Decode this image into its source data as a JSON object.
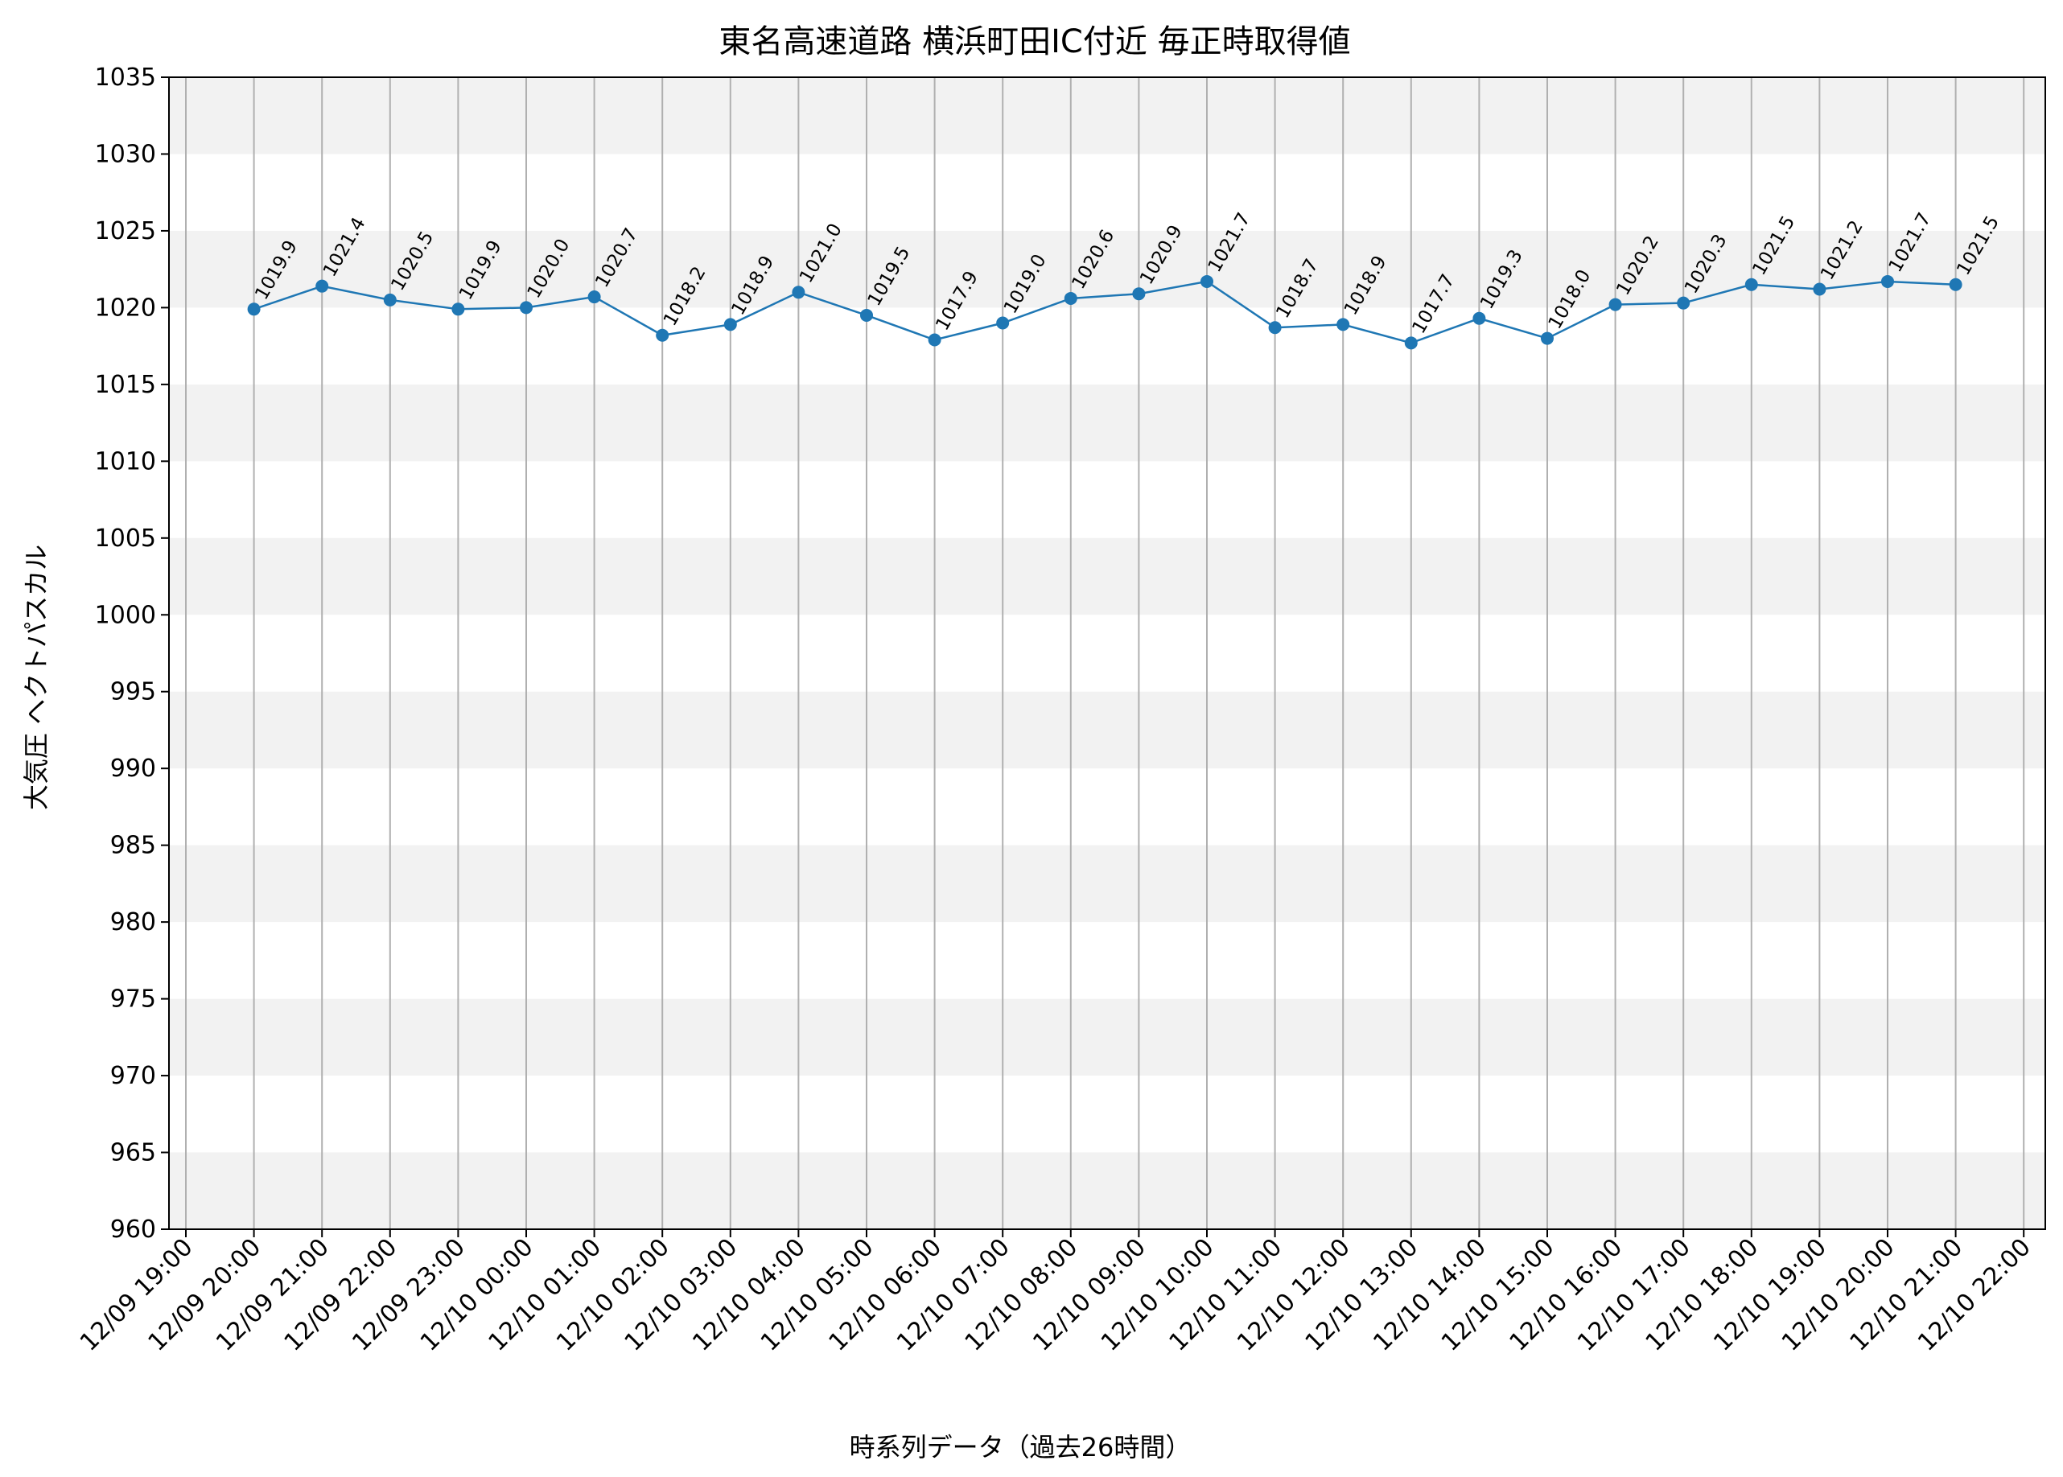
{
  "chart_data": {
    "type": "line",
    "title": "東名高速道路 横浜町田IC付近 毎正時取得値",
    "xlabel": "時系列データ（過去26時間）",
    "ylabel": "大気圧 ヘクトパスカル",
    "ylim": [
      960,
      1035
    ],
    "y_ticks": [
      "960",
      "965",
      "970",
      "975",
      "980",
      "985",
      "990",
      "995",
      "1000",
      "1005",
      "1010",
      "1015",
      "1020",
      "1025",
      "1030",
      "1035"
    ],
    "x_ticks": [
      "12/09 19:00",
      "12/09 20:00",
      "12/09 21:00",
      "12/09 22:00",
      "12/09 23:00",
      "12/10 00:00",
      "12/10 01:00",
      "12/10 02:00",
      "12/10 03:00",
      "12/10 04:00",
      "12/10 05:00",
      "12/10 06:00",
      "12/10 07:00",
      "12/10 08:00",
      "12/10 09:00",
      "12/10 10:00",
      "12/10 11:00",
      "12/10 12:00",
      "12/10 13:00",
      "12/10 14:00",
      "12/10 15:00",
      "12/10 16:00",
      "12/10 17:00",
      "12/10 18:00",
      "12/10 19:00",
      "12/10 20:00",
      "12/10 21:00",
      "12/10 22:00"
    ],
    "x": [
      "12/09 20:00",
      "12/09 21:00",
      "12/09 22:00",
      "12/09 23:00",
      "12/10 00:00",
      "12/10 01:00",
      "12/10 02:00",
      "12/10 03:00",
      "12/10 04:00",
      "12/10 05:00",
      "12/10 06:00",
      "12/10 07:00",
      "12/10 08:00",
      "12/10 09:00",
      "12/10 10:00",
      "12/10 11:00",
      "12/10 12:00",
      "12/10 13:00",
      "12/10 14:00",
      "12/10 15:00",
      "12/10 16:00",
      "12/10 17:00",
      "12/10 18:00",
      "12/10 19:00",
      "12/10 20:00",
      "12/10 21:00"
    ],
    "values": [
      1019.9,
      1021.4,
      1020.5,
      1019.9,
      1020.0,
      1020.7,
      1018.2,
      1018.9,
      1021.0,
      1019.5,
      1017.9,
      1019.0,
      1020.6,
      1020.9,
      1021.7,
      1018.7,
      1018.9,
      1017.7,
      1019.3,
      1018.0,
      1020.2,
      1020.3,
      1021.5,
      1021.2,
      1021.7,
      1021.5
    ],
    "data_labels": [
      "1019.9",
      "1021.4",
      "1020.5",
      "1019.9",
      "1020.0",
      "1020.7",
      "1018.2",
      "1018.9",
      "1021.0",
      "1019.5",
      "1017.9",
      "1019.0",
      "1020.6",
      "1020.9",
      "1021.7",
      "1018.7",
      "1018.9",
      "1017.7",
      "1019.3",
      "1018.0",
      "1020.2",
      "1020.3",
      "1021.5",
      "1021.2",
      "1021.7",
      "1021.5"
    ],
    "grid": "vertical",
    "band_shading": "alternating gray bands every 5 hPa",
    "colors": {
      "line": "#1f77b4",
      "band": "#f2f2f2",
      "grid": "#b0b0b0"
    }
  }
}
